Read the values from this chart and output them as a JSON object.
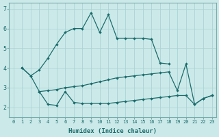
{
  "xlabel": "Humidex (Indice chaleur)",
  "background_color": "#cce9e9",
  "grid_color": "#aad4d4",
  "line_color": "#1a6b6b",
  "xlim": [
    -0.5,
    23.5
  ],
  "ylim": [
    1.5,
    7.3
  ],
  "yticks": [
    2,
    3,
    4,
    5,
    6,
    7
  ],
  "xticks": [
    0,
    1,
    2,
    3,
    4,
    5,
    6,
    7,
    8,
    9,
    10,
    11,
    12,
    13,
    14,
    15,
    16,
    17,
    18,
    19,
    20,
    21,
    22,
    23
  ],
  "curve_top_x": [
    1,
    2,
    3,
    4,
    5,
    6,
    7,
    8,
    9,
    10,
    11,
    12,
    13,
    14,
    15,
    16,
    17,
    18
  ],
  "curve_top_y": [
    4.0,
    3.6,
    3.9,
    4.5,
    5.2,
    5.8,
    6.0,
    6.0,
    6.8,
    5.8,
    6.7,
    5.5,
    5.5,
    5.5,
    5.5,
    5.45,
    4.25,
    4.2
  ],
  "curve_mid_x": [
    3,
    4,
    5,
    6,
    7,
    8,
    9,
    10,
    11,
    12,
    13,
    14,
    15,
    16,
    17,
    18,
    19,
    20,
    21,
    22,
    23
  ],
  "curve_mid_y": [
    2.8,
    2.85,
    2.9,
    3.0,
    3.05,
    3.1,
    3.2,
    3.3,
    3.4,
    3.5,
    3.55,
    3.6,
    3.65,
    3.7,
    3.75,
    3.8,
    2.85,
    4.2,
    2.15,
    2.45,
    2.6
  ],
  "curve_bot_x": [
    1,
    2,
    3,
    4,
    5,
    6,
    7,
    8,
    9,
    10,
    11,
    12,
    13,
    14,
    15,
    16,
    17,
    18,
    19,
    20,
    21,
    22,
    23
  ],
  "curve_bot_y": [
    4.0,
    3.6,
    2.8,
    2.15,
    2.1,
    2.8,
    2.25,
    2.2,
    2.2,
    2.2,
    2.2,
    2.25,
    2.3,
    2.35,
    2.4,
    2.45,
    2.5,
    2.55,
    2.6,
    2.6,
    2.15,
    2.45,
    2.6
  ]
}
